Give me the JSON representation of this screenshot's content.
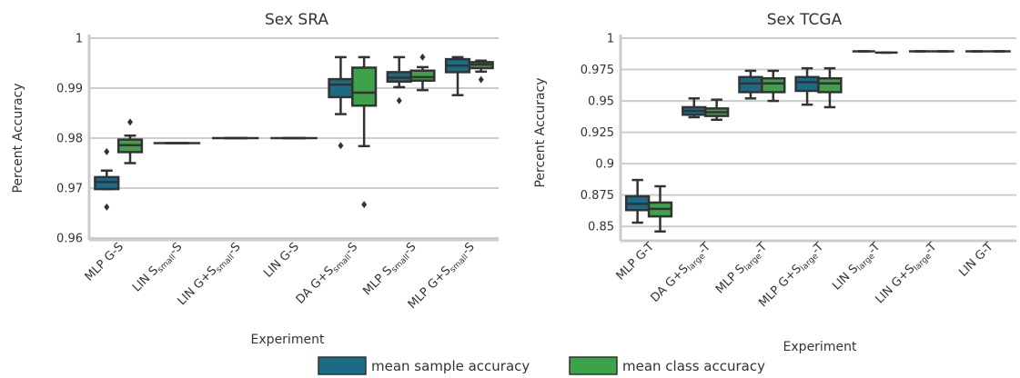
{
  "colors": {
    "sample": "#1b6b86",
    "class": "#3da24a",
    "edge": "#333333",
    "grid": "#cccccc"
  },
  "legend": [
    {
      "label": "mean sample accuracy",
      "color": "#1b6b86"
    },
    {
      "label": "mean class accuracy",
      "color": "#3da24a"
    }
  ],
  "chart_data": [
    {
      "type": "box",
      "title": "Sex SRA",
      "xlabel": "Experiment",
      "ylabel": "Percent Accuracy",
      "ylim": [
        0.96,
        1.0
      ],
      "yticks": [
        0.96,
        0.97,
        0.98,
        0.99,
        1.0
      ],
      "ytick_labels": [
        "0.96",
        "0.97",
        "0.98",
        "0.99",
        "1"
      ],
      "grid": true,
      "categories": [
        {
          "parts": [
            {
              "t": "MLP G-S"
            }
          ]
        },
        {
          "parts": [
            {
              "t": "LIN S"
            },
            {
              "t": "small",
              "sub": true
            },
            {
              "t": "-S"
            }
          ]
        },
        {
          "parts": [
            {
              "t": "LIN G+S"
            },
            {
              "t": "small",
              "sub": true
            },
            {
              "t": "-S"
            }
          ]
        },
        {
          "parts": [
            {
              "t": "LIN G-S"
            }
          ]
        },
        {
          "parts": [
            {
              "t": "DA G+S"
            },
            {
              "t": "small",
              "sub": true
            },
            {
              "t": "-S"
            }
          ]
        },
        {
          "parts": [
            {
              "t": "MLP S"
            },
            {
              "t": "small",
              "sub": true
            },
            {
              "t": "-S"
            }
          ]
        },
        {
          "parts": [
            {
              "t": "MLP G+S"
            },
            {
              "t": "small",
              "sub": true
            },
            {
              "t": "-S"
            }
          ]
        }
      ],
      "series": [
        {
          "name": "mean sample accuracy",
          "boxes": [
            {
              "wlo": 0.9698,
              "q1": 0.9698,
              "med": 0.9712,
              "q3": 0.9722,
              "whi": 0.9735,
              "out": [
                0.9662,
                0.9773
              ]
            },
            {
              "wlo": 0.979,
              "q1": 0.979,
              "med": 0.979,
              "q3": 0.979,
              "whi": 0.979,
              "out": []
            },
            {
              "wlo": 0.98,
              "q1": 0.98,
              "med": 0.98,
              "q3": 0.98,
              "whi": 0.98,
              "out": []
            },
            {
              "wlo": 0.98,
              "q1": 0.98,
              "med": 0.98,
              "q3": 0.98,
              "whi": 0.98,
              "out": []
            },
            {
              "wlo": 0.9848,
              "q1": 0.9882,
              "med": 0.9907,
              "q3": 0.9918,
              "whi": 0.9962,
              "out": [
                0.9785
              ]
            },
            {
              "wlo": 0.9902,
              "q1": 0.9913,
              "med": 0.9921,
              "q3": 0.9932,
              "whi": 0.9962,
              "out": [
                0.9875
              ]
            },
            {
              "wlo": 0.9886,
              "q1": 0.9932,
              "med": 0.9945,
              "q3": 0.9958,
              "whi": 0.9962,
              "out": []
            }
          ]
        },
        {
          "name": "mean class accuracy",
          "boxes": [
            {
              "wlo": 0.975,
              "q1": 0.9772,
              "med": 0.9786,
              "q3": 0.9797,
              "whi": 0.9805,
              "out": [
                0.9832
              ]
            },
            null,
            null,
            null,
            {
              "wlo": 0.9784,
              "q1": 0.9865,
              "med": 0.9891,
              "q3": 0.9941,
              "whi": 0.9962,
              "out": [
                0.9667
              ]
            },
            {
              "wlo": 0.9896,
              "q1": 0.9915,
              "med": 0.9922,
              "q3": 0.9935,
              "whi": 0.9942,
              "out": [
                0.9962
              ]
            },
            {
              "wlo": 0.9933,
              "q1": 0.994,
              "med": 0.9947,
              "q3": 0.9952,
              "whi": 0.9955,
              "out": [
                0.9917
              ]
            }
          ]
        }
      ]
    },
    {
      "type": "box",
      "title": "Sex TCGA",
      "xlabel": "Experiment",
      "ylabel": "Percent Accuracy",
      "ylim": [
        0.84,
        1.0
      ],
      "yticks": [
        0.85,
        0.875,
        0.9,
        0.925,
        0.95,
        0.975,
        1.0
      ],
      "ytick_labels": [
        "0.85",
        "0.875",
        "0.9",
        "0.925",
        "0.95",
        "0.975",
        "1"
      ],
      "grid": true,
      "categories": [
        {
          "parts": [
            {
              "t": "MLP G-T"
            }
          ]
        },
        {
          "parts": [
            {
              "t": "DA G+S"
            },
            {
              "t": "large",
              "sub": true
            },
            {
              "t": "-T"
            }
          ]
        },
        {
          "parts": [
            {
              "t": "MLP S"
            },
            {
              "t": "large",
              "sub": true
            },
            {
              "t": "-T"
            }
          ]
        },
        {
          "parts": [
            {
              "t": "MLP G+S"
            },
            {
              "t": "large",
              "sub": true
            },
            {
              "t": "-T"
            }
          ]
        },
        {
          "parts": [
            {
              "t": "LIN S"
            },
            {
              "t": "large",
              "sub": true
            },
            {
              "t": "-T"
            }
          ]
        },
        {
          "parts": [
            {
              "t": "LIN G+S"
            },
            {
              "t": "large",
              "sub": true
            },
            {
              "t": "-T"
            }
          ]
        },
        {
          "parts": [
            {
              "t": "LIN G-T"
            }
          ]
        }
      ],
      "series": [
        {
          "name": "mean sample accuracy",
          "boxes": [
            {
              "wlo": 0.853,
              "q1": 0.863,
              "med": 0.868,
              "q3": 0.874,
              "whi": 0.887,
              "out": []
            },
            {
              "wlo": 0.937,
              "q1": 0.939,
              "med": 0.942,
              "q3": 0.945,
              "whi": 0.952,
              "out": []
            },
            {
              "wlo": 0.952,
              "q1": 0.957,
              "med": 0.964,
              "q3": 0.969,
              "whi": 0.974,
              "out": []
            },
            {
              "wlo": 0.947,
              "q1": 0.958,
              "med": 0.965,
              "q3": 0.969,
              "whi": 0.976,
              "out": []
            },
            {
              "wlo": 0.9895,
              "q1": 0.9895,
              "med": 0.9895,
              "q3": 0.9895,
              "whi": 0.9895,
              "out": []
            },
            {
              "wlo": 0.9895,
              "q1": 0.9895,
              "med": 0.9895,
              "q3": 0.9895,
              "whi": 0.9895,
              "out": []
            },
            {
              "wlo": 0.9895,
              "q1": 0.9895,
              "med": 0.9895,
              "q3": 0.9895,
              "whi": 0.9895,
              "out": []
            }
          ]
        },
        {
          "name": "mean class accuracy",
          "boxes": [
            {
              "wlo": 0.846,
              "q1": 0.858,
              "med": 0.864,
              "q3": 0.869,
              "whi": 0.882,
              "out": []
            },
            {
              "wlo": 0.935,
              "q1": 0.938,
              "med": 0.941,
              "q3": 0.944,
              "whi": 0.951,
              "out": []
            },
            {
              "wlo": 0.95,
              "q1": 0.957,
              "med": 0.964,
              "q3": 0.968,
              "whi": 0.974,
              "out": []
            },
            {
              "wlo": 0.945,
              "q1": 0.957,
              "med": 0.964,
              "q3": 0.968,
              "whi": 0.976,
              "out": []
            },
            {
              "wlo": 0.9885,
              "q1": 0.9885,
              "med": 0.9885,
              "q3": 0.9885,
              "whi": 0.9885,
              "out": []
            },
            {
              "wlo": 0.9895,
              "q1": 0.9895,
              "med": 0.9895,
              "q3": 0.9895,
              "whi": 0.9895,
              "out": []
            },
            {
              "wlo": 0.9895,
              "q1": 0.9895,
              "med": 0.9895,
              "q3": 0.9895,
              "whi": 0.9895,
              "out": []
            }
          ]
        }
      ]
    }
  ]
}
